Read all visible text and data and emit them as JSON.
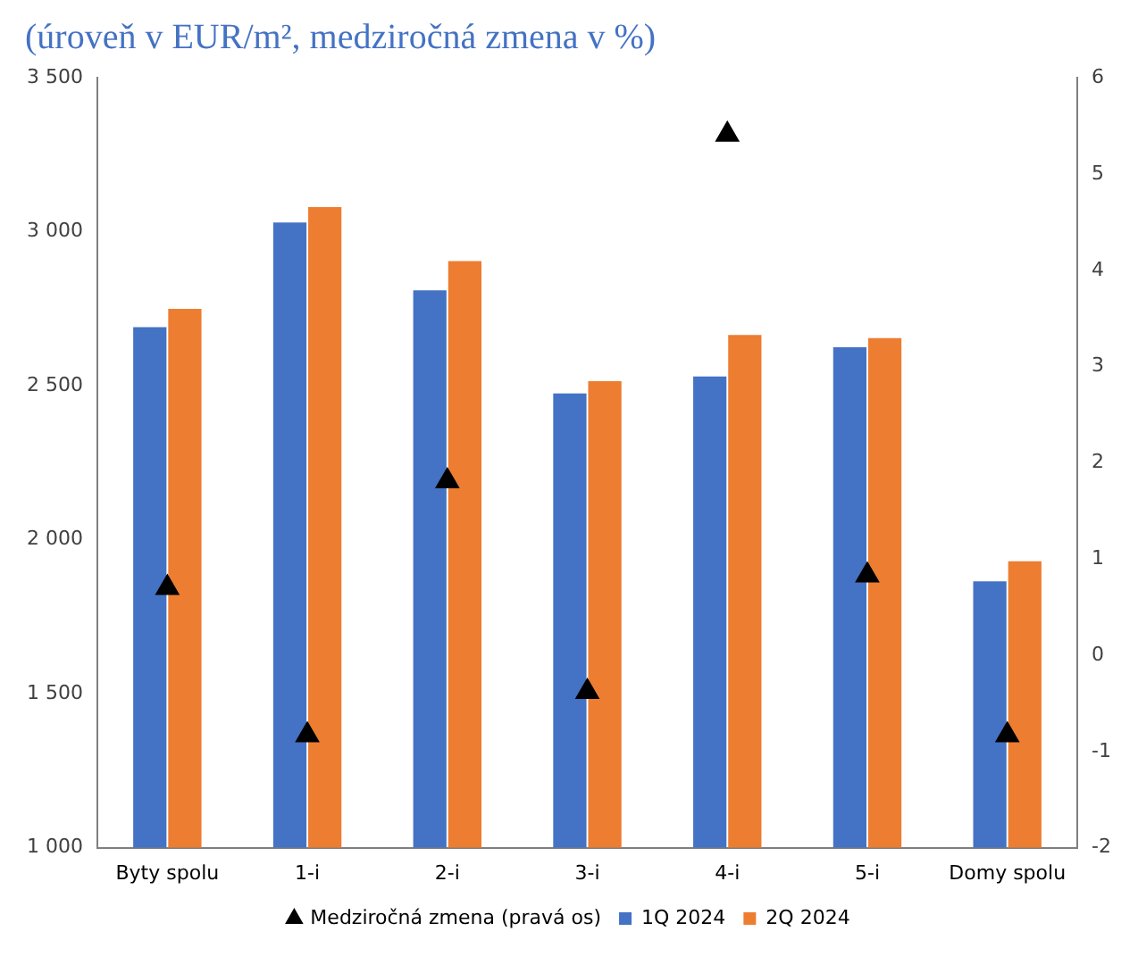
{
  "chart_data": {
    "type": "bar",
    "title": "(úroveň v EUR/m², medziročná zmena v %)",
    "categories": [
      "Byty spolu",
      "1-i",
      "2-i",
      "3-i",
      "4-i",
      "5-i",
      "Domy spolu"
    ],
    "series": [
      {
        "name": "1Q 2024",
        "color": "#4472c4",
        "values": [
          2690,
          3030,
          2810,
          2475,
          2530,
          2625,
          1865
        ]
      },
      {
        "name": "2Q 2024",
        "color": "#ed7d31",
        "values": [
          2750,
          3080,
          2905,
          2515,
          2665,
          2655,
          1930
        ]
      },
      {
        "name": "Medziročná zmena (pravá os)",
        "type": "scatter",
        "axis": "y2",
        "marker": "triangle",
        "color": "#000000",
        "values": [
          0.7,
          -0.83,
          1.81,
          -0.38,
          5.41,
          0.83,
          -0.83
        ]
      }
    ],
    "ylim": [
      1000,
      3500
    ],
    "yticks": [
      {
        "value": 1000,
        "label": "1 000"
      },
      {
        "value": 1500,
        "label": "1 500"
      },
      {
        "value": 2000,
        "label": "2 000"
      },
      {
        "value": 2500,
        "label": "2 500"
      },
      {
        "value": 3000,
        "label": "3 000"
      },
      {
        "value": 3500,
        "label": "3 500"
      }
    ],
    "y2lim": [
      -2,
      6
    ],
    "y2ticks": [
      -2,
      -1,
      0,
      1,
      2,
      3,
      4,
      5,
      6
    ],
    "grid": false,
    "legend": "bottom"
  }
}
